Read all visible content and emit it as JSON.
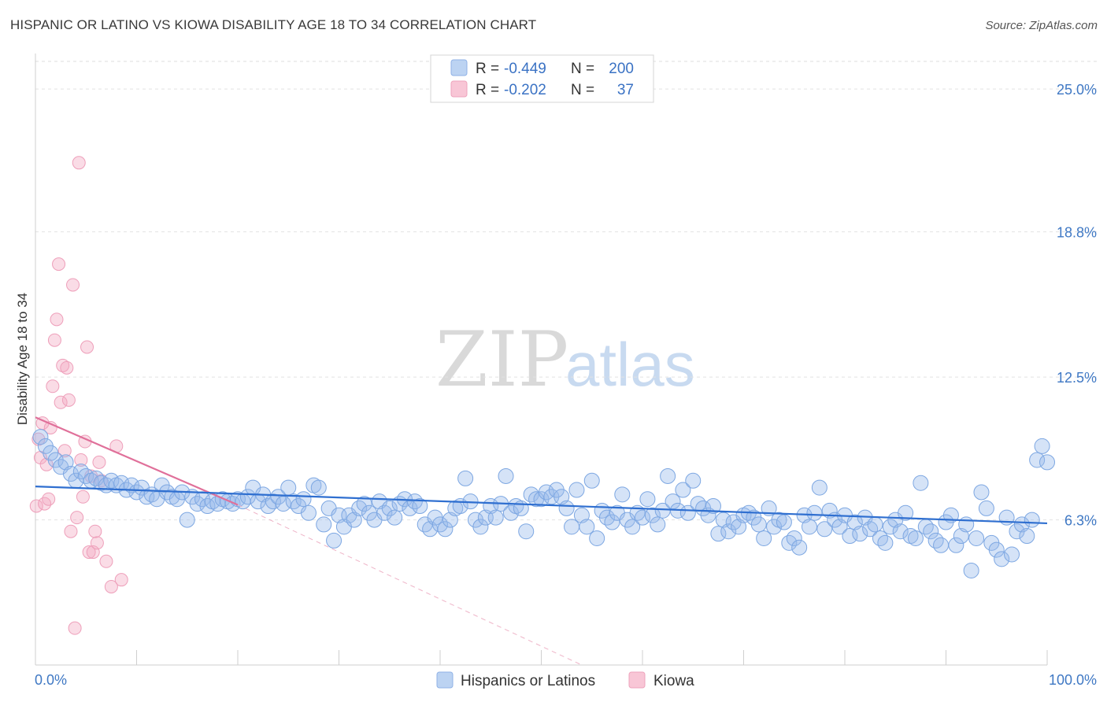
{
  "title": "HISPANIC OR LATINO VS KIOWA DISABILITY AGE 18 TO 34 CORRELATION CHART",
  "source": "Source: ZipAtlas.com",
  "watermark": {
    "zip": "ZIP",
    "atlas": "atlas"
  },
  "legend": {
    "rows": [
      {
        "r_label": "R =",
        "r_value": "-0.449",
        "n_label": "N =",
        "n_value": "200"
      },
      {
        "r_label": "R =",
        "r_value": "-0.202",
        "n_label": "N =",
        "n_value": "37"
      }
    ]
  },
  "bottom_legend": [
    "Hispanics or Latinos",
    "Kiowa"
  ],
  "chart_data": {
    "type": "scatter",
    "ylabel": "Disability Age 18 to 34",
    "x_tick_labels": [
      "0.0%",
      "100.0%"
    ],
    "y_tick_labels": [
      "25.0%",
      "18.8%",
      "12.5%",
      "6.3%"
    ],
    "y_ticks": [
      25.0,
      18.8,
      12.5,
      6.3
    ],
    "xlim": [
      0,
      100
    ],
    "ylim": [
      0,
      26.2
    ],
    "grid": "horizontal dashed",
    "legend_position": "top-center",
    "colors": {
      "blue": "#6f9fe0",
      "blue_line": "#2f6fd0",
      "pink": "#f2a8c0",
      "pink_line": "#e0709a"
    },
    "series": [
      {
        "name": "Hispanics or Latinos",
        "color": "#6f9fe0",
        "trend": {
          "x0": 0,
          "y0": 7.75,
          "x1": 100,
          "y1": 6.15
        },
        "points": [
          [
            0.5,
            9.9
          ],
          [
            1,
            9.5
          ],
          [
            1.5,
            9.2
          ],
          [
            2,
            8.9
          ],
          [
            2.5,
            8.6
          ],
          [
            3,
            8.8
          ],
          [
            3.5,
            8.3
          ],
          [
            4,
            8.0
          ],
          [
            4.5,
            8.4
          ],
          [
            5,
            8.2
          ],
          [
            5.5,
            8.0
          ],
          [
            6,
            8.1
          ],
          [
            6.5,
            7.9
          ],
          [
            7,
            7.8
          ],
          [
            7.5,
            8.0
          ],
          [
            8,
            7.8
          ],
          [
            8.5,
            7.9
          ],
          [
            9,
            7.6
          ],
          [
            9.5,
            7.8
          ],
          [
            10,
            7.5
          ],
          [
            10.5,
            7.7
          ],
          [
            11,
            7.3
          ],
          [
            11.5,
            7.4
          ],
          [
            12,
            7.2
          ],
          [
            12.5,
            7.8
          ],
          [
            13,
            7.5
          ],
          [
            13.5,
            7.3
          ],
          [
            14,
            7.2
          ],
          [
            14.5,
            7.5
          ],
          [
            15,
            6.3
          ],
          [
            15.5,
            7.3
          ],
          [
            16,
            7.0
          ],
          [
            16.5,
            7.2
          ],
          [
            17,
            6.9
          ],
          [
            17.5,
            7.1
          ],
          [
            18,
            7.0
          ],
          [
            18.5,
            7.2
          ],
          [
            19,
            7.1
          ],
          [
            19.5,
            7.0
          ],
          [
            20,
            7.2
          ],
          [
            20.5,
            7.1
          ],
          [
            21,
            7.3
          ],
          [
            21.5,
            7.7
          ],
          [
            22,
            7.1
          ],
          [
            22.5,
            7.4
          ],
          [
            23,
            6.9
          ],
          [
            23.5,
            7.1
          ],
          [
            24,
            7.3
          ],
          [
            24.5,
            7.0
          ],
          [
            25,
            7.7
          ],
          [
            25.5,
            7.1
          ],
          [
            26,
            6.9
          ],
          [
            26.5,
            7.2
          ],
          [
            27,
            6.6
          ],
          [
            27.5,
            7.8
          ],
          [
            28,
            7.7
          ],
          [
            28.5,
            6.1
          ],
          [
            29,
            6.8
          ],
          [
            29.5,
            5.4
          ],
          [
            30,
            6.5
          ],
          [
            30.5,
            6.0
          ],
          [
            31,
            6.5
          ],
          [
            31.5,
            6.3
          ],
          [
            32,
            6.8
          ],
          [
            32.5,
            7.0
          ],
          [
            33,
            6.6
          ],
          [
            33.5,
            6.3
          ],
          [
            34,
            7.1
          ],
          [
            34.5,
            6.6
          ],
          [
            35,
            6.8
          ],
          [
            35.5,
            6.4
          ],
          [
            36,
            7.0
          ],
          [
            36.5,
            7.2
          ],
          [
            37,
            6.8
          ],
          [
            37.5,
            7.1
          ],
          [
            38,
            6.9
          ],
          [
            38.5,
            6.1
          ],
          [
            39,
            5.9
          ],
          [
            39.5,
            6.4
          ],
          [
            40,
            6.1
          ],
          [
            40.5,
            5.9
          ],
          [
            41,
            6.3
          ],
          [
            41.5,
            6.8
          ],
          [
            42,
            6.9
          ],
          [
            42.5,
            8.1
          ],
          [
            43,
            7.1
          ],
          [
            43.5,
            6.3
          ],
          [
            44,
            6.0
          ],
          [
            44.5,
            6.4
          ],
          [
            45,
            6.9
          ],
          [
            45.5,
            6.4
          ],
          [
            46,
            7.0
          ],
          [
            46.5,
            8.2
          ],
          [
            47,
            6.6
          ],
          [
            47.5,
            6.9
          ],
          [
            48,
            6.8
          ],
          [
            48.5,
            5.8
          ],
          [
            49,
            7.4
          ],
          [
            49.5,
            7.2
          ],
          [
            50,
            7.2
          ],
          [
            50.5,
            7.5
          ],
          [
            51,
            7.3
          ],
          [
            51.5,
            7.6
          ],
          [
            52,
            7.3
          ],
          [
            52.5,
            6.8
          ],
          [
            53,
            6.0
          ],
          [
            53.5,
            7.6
          ],
          [
            54,
            6.5
          ],
          [
            54.5,
            6.0
          ],
          [
            55,
            8.0
          ],
          [
            55.5,
            5.5
          ],
          [
            56,
            6.7
          ],
          [
            56.5,
            6.4
          ],
          [
            57,
            6.2
          ],
          [
            57.5,
            6.6
          ],
          [
            58,
            7.4
          ],
          [
            58.5,
            6.3
          ],
          [
            59,
            6.0
          ],
          [
            59.5,
            6.6
          ],
          [
            60,
            6.4
          ],
          [
            60.5,
            7.2
          ],
          [
            61,
            6.5
          ],
          [
            61.5,
            6.1
          ],
          [
            62,
            6.7
          ],
          [
            62.5,
            8.2
          ],
          [
            63,
            7.1
          ],
          [
            63.5,
            6.7
          ],
          [
            64,
            7.6
          ],
          [
            64.5,
            6.6
          ],
          [
            65,
            8.0
          ],
          [
            65.5,
            7.0
          ],
          [
            66,
            6.8
          ],
          [
            66.5,
            6.5
          ],
          [
            67,
            6.9
          ],
          [
            67.5,
            5.7
          ],
          [
            68,
            6.3
          ],
          [
            68.5,
            5.8
          ],
          [
            69,
            6.2
          ],
          [
            69.5,
            6.0
          ],
          [
            70,
            6.5
          ],
          [
            70.5,
            6.6
          ],
          [
            71,
            6.4
          ],
          [
            71.5,
            6.1
          ],
          [
            72,
            5.5
          ],
          [
            72.5,
            6.8
          ],
          [
            73,
            6.0
          ],
          [
            73.5,
            6.3
          ],
          [
            74,
            6.2
          ],
          [
            74.5,
            5.3
          ],
          [
            75,
            5.5
          ],
          [
            75.5,
            5.1
          ],
          [
            76,
            6.5
          ],
          [
            76.5,
            6.0
          ],
          [
            77,
            6.6
          ],
          [
            77.5,
            7.7
          ],
          [
            78,
            5.9
          ],
          [
            78.5,
            6.7
          ],
          [
            79,
            6.3
          ],
          [
            79.5,
            6.0
          ],
          [
            80,
            6.5
          ],
          [
            80.5,
            5.6
          ],
          [
            81,
            6.2
          ],
          [
            81.5,
            5.7
          ],
          [
            82,
            6.4
          ],
          [
            82.5,
            5.9
          ],
          [
            83,
            6.1
          ],
          [
            83.5,
            5.5
          ],
          [
            84,
            5.3
          ],
          [
            84.5,
            6.0
          ],
          [
            85,
            6.3
          ],
          [
            85.5,
            5.8
          ],
          [
            86,
            6.6
          ],
          [
            86.5,
            5.6
          ],
          [
            87,
            5.5
          ],
          [
            87.5,
            7.9
          ],
          [
            88,
            6.0
          ],
          [
            88.5,
            5.8
          ],
          [
            89,
            5.4
          ],
          [
            89.5,
            5.2
          ],
          [
            90,
            6.2
          ],
          [
            90.5,
            6.5
          ],
          [
            91,
            5.2
          ],
          [
            91.5,
            5.6
          ],
          [
            92,
            6.1
          ],
          [
            92.5,
            4.1
          ],
          [
            93,
            5.5
          ],
          [
            93.5,
            7.5
          ],
          [
            94,
            6.8
          ],
          [
            94.5,
            5.3
          ],
          [
            95,
            5.0
          ],
          [
            95.5,
            4.6
          ],
          [
            96,
            6.4
          ],
          [
            96.5,
            4.8
          ],
          [
            97,
            5.8
          ],
          [
            97.5,
            6.1
          ],
          [
            98,
            5.6
          ],
          [
            98.5,
            6.3
          ],
          [
            99,
            8.9
          ],
          [
            99.5,
            9.5
          ],
          [
            100,
            8.8
          ]
        ]
      },
      {
        "name": "Kiowa",
        "color": "#f2a8c0",
        "trend": {
          "x0": 0,
          "y0": 10.75,
          "x1": 20,
          "y1": 6.95
        },
        "trend_extension": {
          "x0": 20,
          "y0": 6.95,
          "x1": 54,
          "y1": 0
        },
        "points": [
          [
            0.1,
            6.9
          ],
          [
            0.3,
            9.8
          ],
          [
            0.5,
            9.0
          ],
          [
            0.7,
            10.5
          ],
          [
            0.9,
            7.0
          ],
          [
            1.1,
            8.7
          ],
          [
            1.3,
            7.2
          ],
          [
            1.5,
            10.3
          ],
          [
            1.7,
            12.1
          ],
          [
            1.9,
            14.1
          ],
          [
            2.1,
            15.0
          ],
          [
            2.3,
            17.4
          ],
          [
            2.5,
            11.4
          ],
          [
            2.7,
            13.0
          ],
          [
            2.9,
            9.3
          ],
          [
            3.1,
            12.9
          ],
          [
            3.3,
            11.5
          ],
          [
            3.5,
            5.8
          ],
          [
            3.7,
            16.5
          ],
          [
            3.9,
            1.6
          ],
          [
            4.1,
            6.4
          ],
          [
            4.3,
            21.8
          ],
          [
            4.5,
            8.9
          ],
          [
            4.7,
            7.3
          ],
          [
            4.9,
            9.7
          ],
          [
            5.1,
            13.8
          ],
          [
            5.3,
            4.9
          ],
          [
            5.5,
            8.2
          ],
          [
            5.7,
            4.9
          ],
          [
            5.9,
            5.8
          ],
          [
            6.1,
            5.3
          ],
          [
            6.3,
            8.8
          ],
          [
            6.5,
            8.0
          ],
          [
            7.0,
            4.5
          ],
          [
            7.5,
            3.4
          ],
          [
            8.0,
            9.5
          ],
          [
            8.5,
            3.7
          ]
        ]
      }
    ]
  }
}
